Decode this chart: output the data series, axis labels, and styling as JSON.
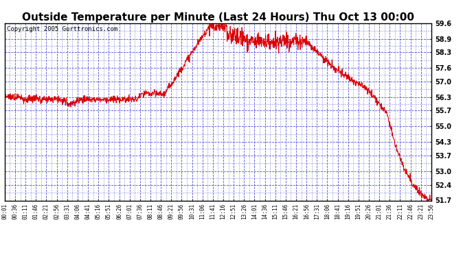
{
  "title": "Outside Temperature per Minute (Last 24 Hours) Thu Oct 13 00:00",
  "copyright": "Copyright 2005 Gurttronics.com",
  "ylabel_values": [
    59.6,
    58.9,
    58.3,
    57.6,
    57.0,
    56.3,
    55.7,
    55.0,
    54.3,
    53.7,
    53.0,
    52.4,
    51.7
  ],
  "ymin": 51.7,
  "ymax": 59.6,
  "xtick_labels": [
    "00:01",
    "00:36",
    "01:11",
    "01:46",
    "02:21",
    "02:56",
    "03:31",
    "04:06",
    "04:41",
    "05:16",
    "05:51",
    "06:26",
    "07:01",
    "07:36",
    "08:11",
    "08:46",
    "09:21",
    "09:56",
    "10:31",
    "11:06",
    "11:41",
    "12:16",
    "12:51",
    "13:26",
    "14:01",
    "14:36",
    "15:11",
    "15:46",
    "16:21",
    "16:56",
    "17:31",
    "18:06",
    "18:41",
    "19:16",
    "19:51",
    "20:26",
    "21:01",
    "21:36",
    "22:11",
    "22:46",
    "23:21",
    "23:56"
  ],
  "line_color": "#dd0000",
  "grid_color": "#3333cc",
  "background_color": "#ffffff",
  "title_fontsize": 11,
  "copyright_fontsize": 6.5,
  "figwidth": 6.9,
  "figheight": 3.75,
  "dpi": 100
}
